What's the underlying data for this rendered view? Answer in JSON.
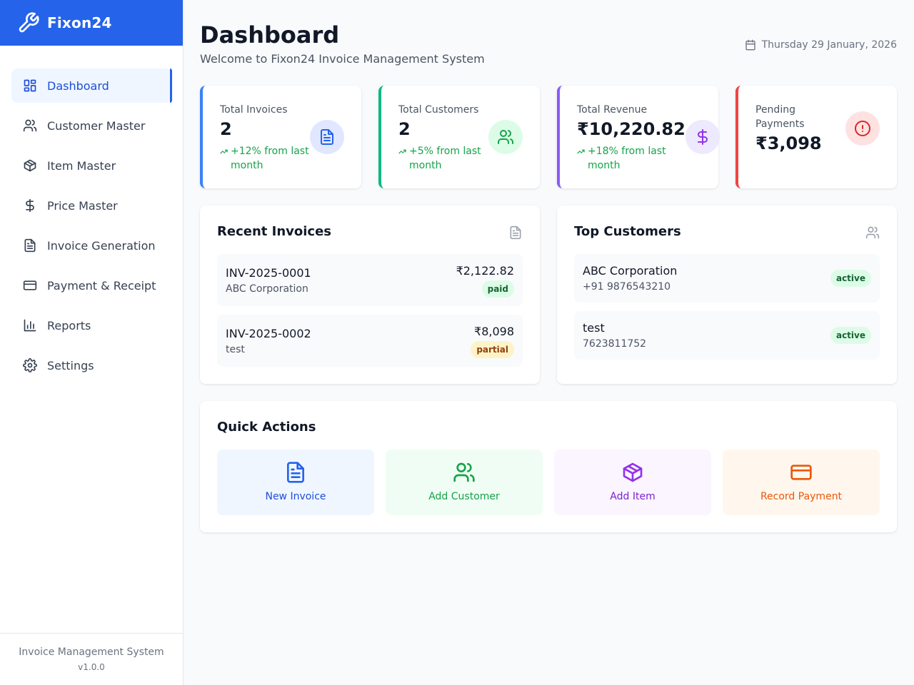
{
  "brand": {
    "name": "Fixon24"
  },
  "nav": [
    {
      "label": "Dashboard",
      "icon": "dashboard-icon"
    },
    {
      "label": "Customer Master",
      "icon": "users-icon"
    },
    {
      "label": "Item Master",
      "icon": "package-icon"
    },
    {
      "label": "Price Master",
      "icon": "dollar-icon"
    },
    {
      "label": "Invoice Generation",
      "icon": "file-text-icon"
    },
    {
      "label": "Payment & Receipt",
      "icon": "credit-card-icon"
    },
    {
      "label": "Reports",
      "icon": "bar-chart-icon"
    },
    {
      "label": "Settings",
      "icon": "gear-icon"
    }
  ],
  "footer": {
    "title": "Invoice Management System",
    "version": "v1.0.0"
  },
  "header": {
    "title": "Dashboard",
    "subtitle": "Welcome to Fixon24 Invoice Management System",
    "date": "Thursday 29 January, 2026"
  },
  "stats": [
    {
      "label": "Total Invoices",
      "value": "2",
      "trend": "+12% from last month",
      "accent": "#3b82f6"
    },
    {
      "label": "Total Customers",
      "value": "2",
      "trend": "+5% from last month",
      "accent": "#10b981"
    },
    {
      "label": "Total Revenue",
      "value": "₹10,220.82",
      "trend": "+18% from last month",
      "accent": "#8b5cf6"
    },
    {
      "label": "Pending Payments",
      "value": "₹3,098",
      "trend": "",
      "accent": "#ef4444"
    }
  ],
  "recent_invoices": {
    "title": "Recent Invoices",
    "items": [
      {
        "number": "INV-2025-0001",
        "customer": "ABC Corporation",
        "amount": "₹2,122.82",
        "status": "paid"
      },
      {
        "number": "INV-2025-0002",
        "customer": "test",
        "amount": "₹8,098",
        "status": "partial"
      }
    ]
  },
  "top_customers": {
    "title": "Top Customers",
    "items": [
      {
        "name": "ABC Corporation",
        "phone": "+91 9876543210",
        "status": "active"
      },
      {
        "name": "test",
        "phone": "7623811752",
        "status": "active"
      }
    ]
  },
  "quick_actions": {
    "title": "Quick Actions",
    "items": [
      {
        "label": "New Invoice"
      },
      {
        "label": "Add Customer"
      },
      {
        "label": "Add Item"
      },
      {
        "label": "Record Payment"
      }
    ]
  }
}
